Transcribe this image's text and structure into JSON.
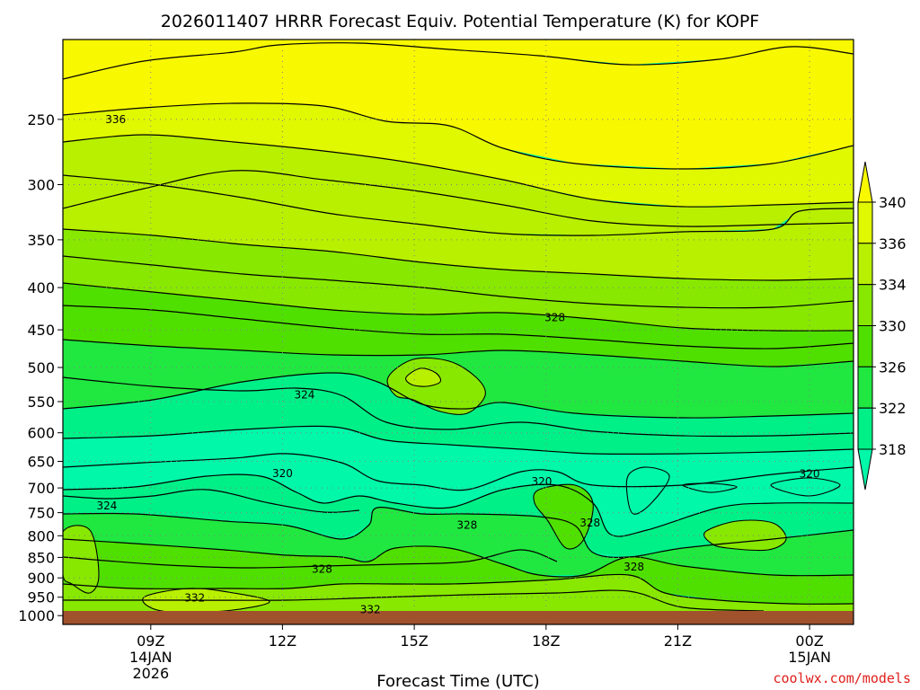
{
  "chart_data": {
    "type": "contour",
    "title": "2026011407 HRRR Forecast Equiv. Potential Temperature (K) for KOPF",
    "xlabel": "Forecast Time (UTC)",
    "ylabel": "",
    "credit": "coolwx.com/models",
    "pressure_axis": {
      "scale": "log",
      "range_hPa": [
        1025,
        200
      ],
      "ticks": [
        "250",
        "300",
        "350",
        "400",
        "450",
        "500",
        "550",
        "600",
        "650",
        "700",
        "750",
        "800",
        "850",
        "900",
        "950",
        "1000"
      ]
    },
    "time_axis": {
      "range_utc": [
        "2026-01-14 07Z",
        "2026-01-15 01Z"
      ],
      "ticks": [
        {
          "label": "09Z",
          "sub1": "14JAN",
          "sub2": "2026",
          "hours": 2
        },
        {
          "label": "12Z",
          "sub1": "",
          "sub2": "",
          "hours": 5
        },
        {
          "label": "15Z",
          "sub1": "",
          "sub2": "",
          "hours": 8
        },
        {
          "label": "18Z",
          "sub1": "",
          "sub2": "",
          "hours": 11
        },
        {
          "label": "21Z",
          "sub1": "",
          "sub2": "",
          "hours": 14
        },
        {
          "label": "00Z",
          "sub1": "15JAN",
          "sub2": "",
          "hours": 17
        }
      ]
    },
    "colorbar": {
      "labels": [
        "340",
        "336",
        "334",
        "330",
        "326",
        "322",
        "318"
      ],
      "colors": [
        "#f8f800",
        "#e0f800",
        "#b8f000",
        "#88e800",
        "#50e000",
        "#20e840",
        "#00f088",
        "#00f8a8"
      ]
    },
    "contour_labels": [
      {
        "text": "336",
        "hours": 1.2,
        "p": 250
      },
      {
        "text": "328",
        "hours": 11.2,
        "p": 435
      },
      {
        "text": "324",
        "hours": 5.5,
        "p": 540
      },
      {
        "text": "320",
        "hours": 5.0,
        "p": 672
      },
      {
        "text": "320",
        "hours": 10.9,
        "p": 688
      },
      {
        "text": "320",
        "hours": 17.0,
        "p": 673
      },
      {
        "text": "324",
        "hours": 1.0,
        "p": 736
      },
      {
        "text": "328",
        "hours": 9.2,
        "p": 777
      },
      {
        "text": "328",
        "hours": 12.0,
        "p": 772
      },
      {
        "text": "328",
        "hours": 5.9,
        "p": 878
      },
      {
        "text": "328",
        "hours": 13.0,
        "p": 873
      },
      {
        "text": "332",
        "hours": 3.0,
        "p": 952
      },
      {
        "text": "332",
        "hours": 7.0,
        "p": 983
      }
    ],
    "grid": true,
    "surface_band": true
  }
}
